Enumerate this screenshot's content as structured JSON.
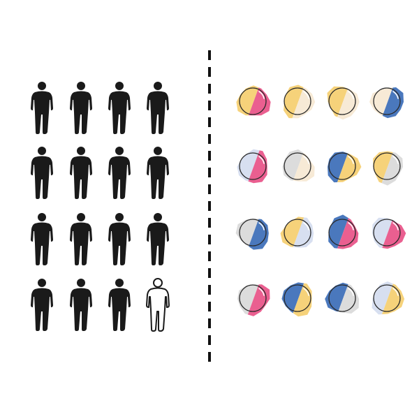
{
  "colors": {
    "person_filled": "#1a1a1a",
    "person_outline": "#1a1a1a",
    "divider": "#111111",
    "outline": "#2a2a2a",
    "yellow": "#f6d27a",
    "pink": "#ea5f90",
    "blue": "#4a78bd",
    "light_blue": "#d7dff0",
    "cream": "#f7ead6",
    "gray": "#dcdcdc"
  },
  "people": [
    {
      "style": "filled"
    },
    {
      "style": "filled"
    },
    {
      "style": "filled"
    },
    {
      "style": "filled"
    },
    {
      "style": "filled"
    },
    {
      "style": "filled"
    },
    {
      "style": "filled"
    },
    {
      "style": "filled"
    },
    {
      "style": "filled"
    },
    {
      "style": "filled"
    },
    {
      "style": "filled"
    },
    {
      "style": "filled"
    },
    {
      "style": "filled"
    },
    {
      "style": "filled"
    },
    {
      "style": "filled"
    },
    {
      "style": "outline"
    }
  ],
  "balls": [
    {
      "left": "yellow",
      "right": "pink"
    },
    {
      "left": "yellow",
      "right": "cream"
    },
    {
      "left": "yellow",
      "right": "cream"
    },
    {
      "left": "cream",
      "right": "blue"
    },
    {
      "left": "light_blue",
      "right": "pink"
    },
    {
      "left": "gray",
      "right": "cream"
    },
    {
      "left": "blue",
      "right": "yellow"
    },
    {
      "left": "yellow",
      "right": "gray"
    },
    {
      "left": "gray",
      "right": "blue"
    },
    {
      "left": "yellow",
      "right": "light_blue"
    },
    {
      "left": "blue",
      "right": "pink"
    },
    {
      "left": "light_blue",
      "right": "pink"
    },
    {
      "left": "gray",
      "right": "pink"
    },
    {
      "left": "blue",
      "right": "yellow"
    },
    {
      "left": "blue",
      "right": "gray"
    },
    {
      "left": "light_blue",
      "right": "yellow"
    }
  ]
}
